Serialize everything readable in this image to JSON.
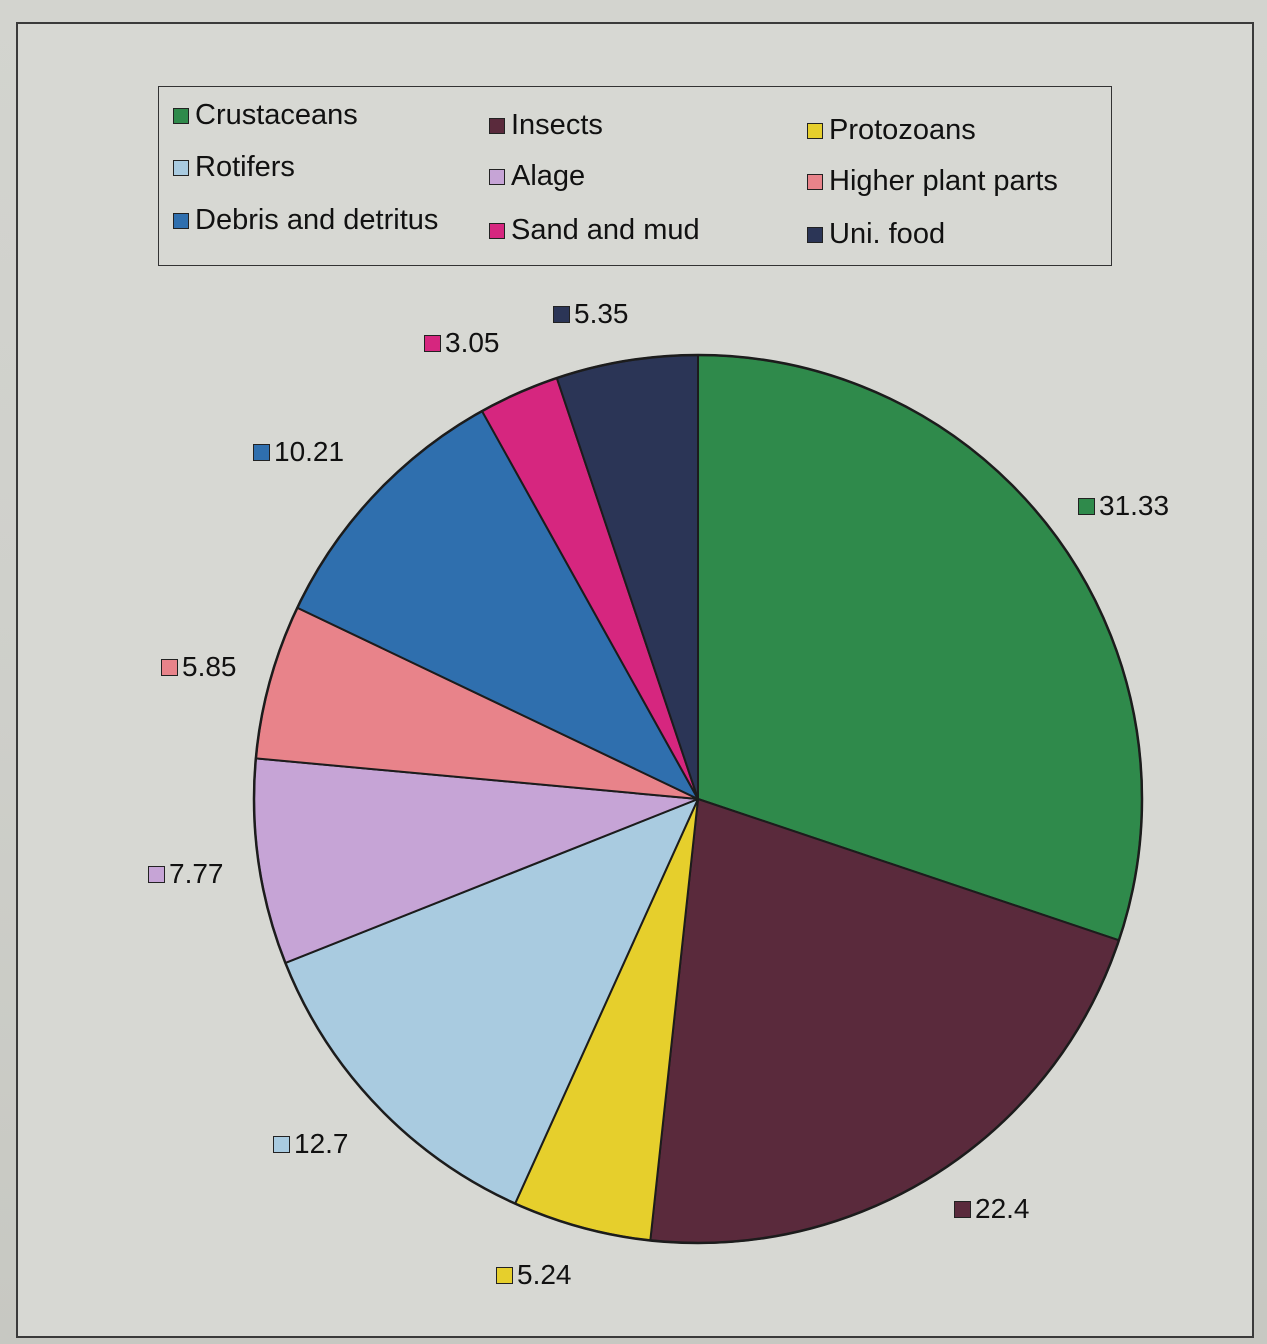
{
  "chart_data": {
    "type": "pie",
    "categories": [
      "Crustaceans",
      "Insects",
      "Protozoans",
      "Rotifers",
      "Alage",
      "Higher plant parts",
      "Debris and detritus",
      "Sand and mud",
      "Uni. food"
    ],
    "values": [
      31.33,
      22.4,
      5.24,
      12.7,
      7.77,
      5.85,
      10.21,
      3.05,
      5.35
    ],
    "value_labels": [
      "31.33",
      "22.4",
      "5.24",
      "12.7",
      "7.77",
      "5.85",
      "10.21",
      "3.05",
      "5.35"
    ],
    "colors": [
      "#2f8a4b",
      "#5a2a3c",
      "#e6cf2c",
      "#a9cbe0",
      "#c6a4d6",
      "#e8838a",
      "#2f6fae",
      "#d6267f",
      "#2b3556"
    ],
    "start": "12 o'clock",
    "direction": "clockwise",
    "legend": "top",
    "title": ""
  }
}
